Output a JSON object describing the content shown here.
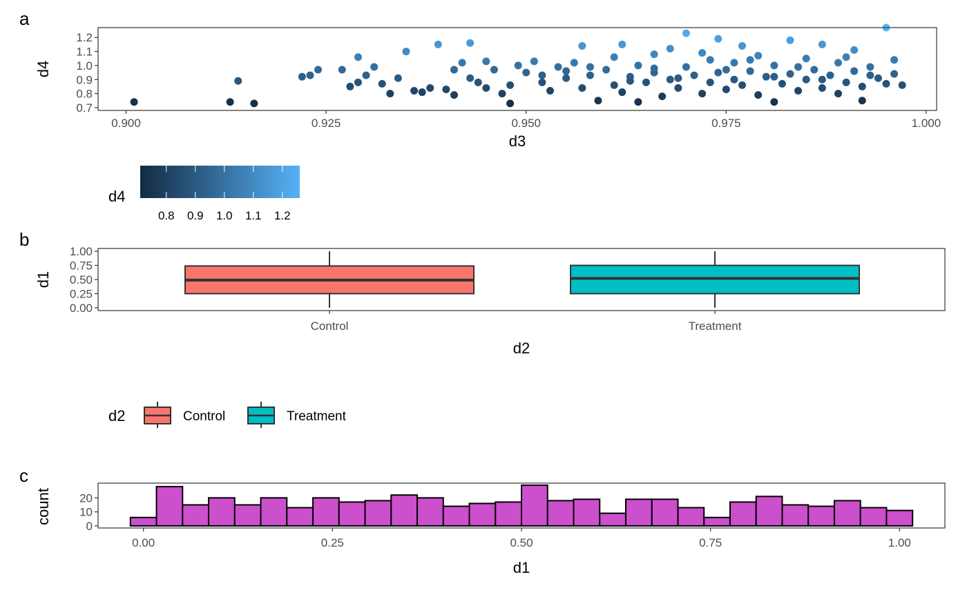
{
  "chart_data": [
    {
      "tag": "a",
      "type": "scatter",
      "xlabel": "d3",
      "ylabel": "d4",
      "xlim": [
        0.8965,
        1.0013
      ],
      "ylim": [
        0.68,
        1.27
      ],
      "xticks": [
        "0.900",
        "0.925",
        "0.950",
        "0.975",
        "1.000"
      ],
      "yticks": [
        "0.7",
        "0.8",
        "0.9",
        "1.0",
        "1.1",
        "1.2"
      ],
      "color_scale": {
        "title": "d4",
        "low": "#132B43",
        "high": "#56B1F7",
        "limits": [
          0.71,
          1.26
        ],
        "ticks": [
          "0.8",
          "0.9",
          "1.0",
          "1.1",
          "1.2"
        ]
      },
      "points": [
        [
          0.901,
          0.74
        ],
        [
          0.913,
          0.74
        ],
        [
          0.914,
          0.89
        ],
        [
          0.916,
          0.73
        ],
        [
          0.922,
          0.92
        ],
        [
          0.923,
          0.93
        ],
        [
          0.924,
          0.97
        ],
        [
          0.927,
          0.97
        ],
        [
          0.928,
          0.85
        ],
        [
          0.929,
          0.88
        ],
        [
          0.929,
          1.06
        ],
        [
          0.93,
          0.93
        ],
        [
          0.931,
          0.99
        ],
        [
          0.932,
          0.87
        ],
        [
          0.933,
          0.8
        ],
        [
          0.934,
          0.91
        ],
        [
          0.935,
          1.1
        ],
        [
          0.936,
          0.82
        ],
        [
          0.937,
          0.81
        ],
        [
          0.938,
          0.84
        ],
        [
          0.939,
          1.15
        ],
        [
          0.94,
          0.83
        ],
        [
          0.941,
          0.97
        ],
        [
          0.941,
          0.79
        ],
        [
          0.942,
          1.02
        ],
        [
          0.943,
          0.91
        ],
        [
          0.943,
          1.16
        ],
        [
          0.944,
          0.88
        ],
        [
          0.945,
          0.84
        ],
        [
          0.946,
          0.97
        ],
        [
          0.947,
          0.8
        ],
        [
          0.948,
          0.86
        ],
        [
          0.948,
          0.73
        ],
        [
          0.949,
          1.0
        ],
        [
          0.95,
          0.95
        ],
        [
          0.951,
          1.03
        ],
        [
          0.952,
          0.88
        ],
        [
          0.953,
          0.82
        ],
        [
          0.954,
          0.99
        ],
        [
          0.955,
          0.91
        ],
        [
          0.956,
          1.02
        ],
        [
          0.957,
          0.84
        ],
        [
          0.957,
          1.14
        ],
        [
          0.958,
          0.93
        ],
        [
          0.959,
          0.75
        ],
        [
          0.96,
          0.97
        ],
        [
          0.961,
          0.86
        ],
        [
          0.962,
          1.15
        ],
        [
          0.962,
          0.81
        ],
        [
          0.963,
          0.92
        ],
        [
          0.964,
          1.0
        ],
        [
          0.964,
          0.74
        ],
        [
          0.965,
          0.88
        ],
        [
          0.966,
          0.95
        ],
        [
          0.966,
          1.08
        ],
        [
          0.967,
          0.78
        ],
        [
          0.968,
          1.12
        ],
        [
          0.968,
          0.9
        ],
        [
          0.969,
          0.84
        ],
        [
          0.97,
          1.23
        ],
        [
          0.97,
          0.99
        ],
        [
          0.971,
          0.93
        ],
        [
          0.972,
          0.8
        ],
        [
          0.973,
          1.04
        ],
        [
          0.973,
          0.88
        ],
        [
          0.974,
          1.19
        ],
        [
          0.974,
          0.95
        ],
        [
          0.975,
          0.83
        ],
        [
          0.976,
          1.02
        ],
        [
          0.976,
          0.9
        ],
        [
          0.977,
          1.14
        ],
        [
          0.977,
          0.86
        ],
        [
          0.978,
          0.96
        ],
        [
          0.979,
          0.79
        ],
        [
          0.979,
          1.07
        ],
        [
          0.98,
          0.92
        ],
        [
          0.981,
          0.74
        ],
        [
          0.981,
          1.0
        ],
        [
          0.982,
          0.87
        ],
        [
          0.983,
          1.18
        ],
        [
          0.983,
          0.94
        ],
        [
          0.984,
          0.82
        ],
        [
          0.985,
          1.05
        ],
        [
          0.985,
          0.9
        ],
        [
          0.986,
          0.97
        ],
        [
          0.987,
          0.84
        ],
        [
          0.987,
          1.15
        ],
        [
          0.988,
          0.93
        ],
        [
          0.989,
          1.02
        ],
        [
          0.989,
          0.8
        ],
        [
          0.99,
          0.88
        ],
        [
          0.991,
          0.96
        ],
        [
          0.991,
          1.11
        ],
        [
          0.992,
          0.85
        ],
        [
          0.992,
          0.75
        ],
        [
          0.993,
          0.99
        ],
        [
          0.994,
          0.91
        ],
        [
          0.995,
          1.27
        ],
        [
          0.995,
          0.87
        ],
        [
          0.996,
          1.04
        ],
        [
          0.996,
          0.94
        ],
        [
          0.997,
          0.86
        ],
        [
          0.961,
          1.06
        ],
        [
          0.966,
          0.98
        ],
        [
          0.972,
          1.09
        ],
        [
          0.978,
          1.04
        ],
        [
          0.984,
          0.99
        ],
        [
          0.99,
          1.06
        ],
        [
          0.955,
          0.96
        ],
        [
          0.945,
          1.03
        ],
        [
          0.969,
          0.91
        ],
        [
          0.975,
          0.97
        ],
        [
          0.981,
          0.92
        ],
        [
          0.987,
          0.9
        ],
        [
          0.993,
          0.93
        ],
        [
          0.963,
          0.89
        ],
        [
          0.958,
          0.99
        ],
        [
          0.952,
          0.93
        ]
      ]
    },
    {
      "tag": "b",
      "type": "boxplot",
      "xlabel": "d2",
      "ylabel": "d1",
      "ylim": [
        -0.05,
        1.05
      ],
      "yticks": [
        "0.00",
        "0.25",
        "0.50",
        "0.75",
        "1.00"
      ],
      "legend": {
        "title": "d2",
        "entries": [
          "Control",
          "Treatment"
        ]
      },
      "groups": [
        {
          "name": "Control",
          "color": "#F8766D",
          "min": 0.0,
          "q1": 0.25,
          "median": 0.49,
          "q3": 0.74,
          "max": 1.0
        },
        {
          "name": "Treatment",
          "color": "#00BFC4",
          "min": 0.0,
          "q1": 0.25,
          "median": 0.52,
          "q3": 0.75,
          "max": 1.0
        }
      ]
    },
    {
      "tag": "c",
      "type": "bar",
      "xlabel": "d1",
      "ylabel": "count",
      "fill": "#CC4FCC",
      "ylim": [
        -1.5,
        30.5
      ],
      "xlim": [
        -0.06,
        1.06
      ],
      "xticks": [
        "0.00",
        "0.25",
        "0.50",
        "0.75",
        "1.00"
      ],
      "yticks": [
        "0",
        "10",
        "20"
      ],
      "bin_width": 0.0345,
      "bin_centers_from": 0,
      "bin_centers_to": 1,
      "values": [
        6,
        28,
        15,
        20,
        15,
        20,
        13,
        20,
        17,
        18,
        22,
        20,
        14,
        16,
        17,
        29,
        18,
        19,
        9,
        19,
        19,
        13,
        6,
        17,
        21,
        15,
        14,
        18,
        13,
        11
      ]
    }
  ]
}
